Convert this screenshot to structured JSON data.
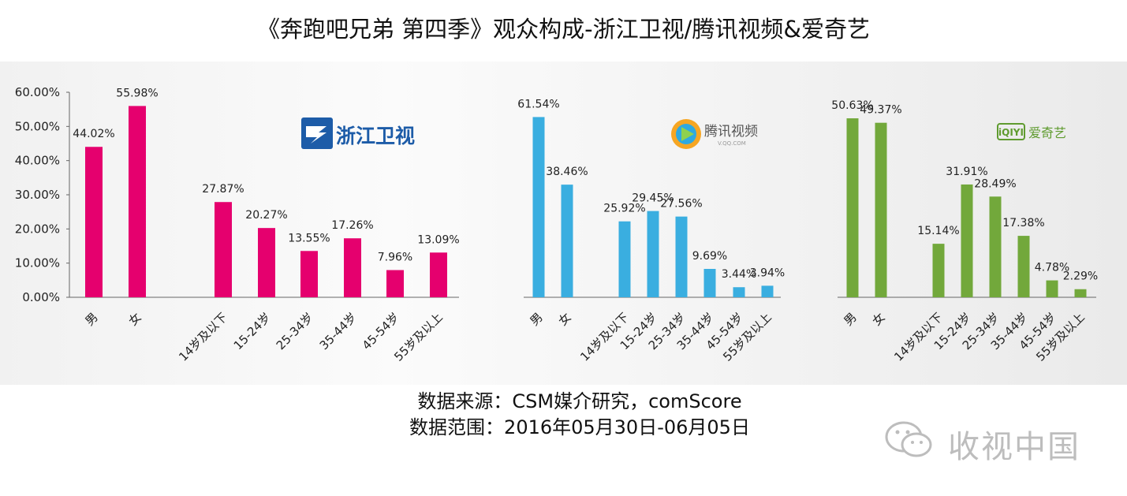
{
  "title": "《奔跑吧兄弟 第四季》观众构成-浙江卫视/腾讯视频&爱奇艺",
  "colors": {
    "zhejiang": "#e5006e",
    "tencent": "#3aaee0",
    "iqiyi": "#72a83b",
    "tencent_logo": "#9a9a9a",
    "zhejiang_logo": "#1d5ca8",
    "iqiyi_logo": "#5f9b2f"
  },
  "logos": {
    "zhejiang": {
      "icon": "zhejiang-tv-logo",
      "text": "浙江卫视"
    },
    "tencent": {
      "icon": "tencent-video-logo",
      "text": "腾讯视频",
      "subtext": "V.QQ.COM"
    },
    "iqiyi": {
      "icon": "iqiyi-logo",
      "badge": "iQIYI",
      "text": "爱奇艺"
    }
  },
  "chart_data": [
    {
      "type": "bar",
      "name": "浙江卫视",
      "categories": [
        "男",
        "女",
        "14岁及以下",
        "15-24岁",
        "25-34岁",
        "35-44岁",
        "45-54岁",
        "55岁及以上"
      ],
      "values": [
        44.02,
        55.98,
        27.87,
        20.27,
        13.55,
        17.26,
        7.96,
        13.09
      ],
      "value_labels": [
        "44.02%",
        "55.98%",
        "27.87%",
        "20.27%",
        "13.55%",
        "17.26%",
        "7.96%",
        "13.09%"
      ],
      "ylim": [
        0,
        60
      ],
      "yticks": [
        "0.00%",
        "10.00%",
        "20.00%",
        "30.00%",
        "40.00%",
        "50.00%",
        "60.00%"
      ],
      "ytick_values": [
        0,
        10,
        20,
        30,
        40,
        50,
        60
      ],
      "grid": false
    },
    {
      "type": "bar",
      "name": "腾讯视频",
      "categories": [
        "男",
        "女",
        "14岁及以下",
        "15-24岁",
        "25-34岁",
        "35-44岁",
        "45-54岁",
        "55岁及以上"
      ],
      "values": [
        61.54,
        38.46,
        25.92,
        29.45,
        27.56,
        9.69,
        3.44,
        3.94
      ],
      "value_labels": [
        "61.54%",
        "38.46%",
        "25.92%",
        "29.45%",
        "27.56%",
        "9.69%",
        "3.44%",
        "3.94%"
      ],
      "ylim": [
        0,
        70
      ],
      "grid": false
    },
    {
      "type": "bar",
      "name": "爱奇艺",
      "categories": [
        "男",
        "女",
        "14岁及以下",
        "15-24岁",
        "25-34岁",
        "35-44岁",
        "45-54岁",
        "55岁及以上"
      ],
      "values": [
        50.63,
        49.37,
        15.14,
        31.91,
        28.49,
        17.38,
        4.78,
        2.29
      ],
      "value_labels": [
        "50.63%",
        "49.37%",
        "15.14%",
        "31.91%",
        "28.49%",
        "17.38%",
        "4.78%",
        "2.29%"
      ],
      "ylim": [
        0,
        58
      ],
      "grid": false
    }
  ],
  "footer": {
    "source": "数据来源：CSM媒介研究，comScore",
    "range": "数据范围：2016年05月30日-06月05日"
  },
  "watermark": {
    "icon": "wechat-icon",
    "text": "收视中国"
  }
}
